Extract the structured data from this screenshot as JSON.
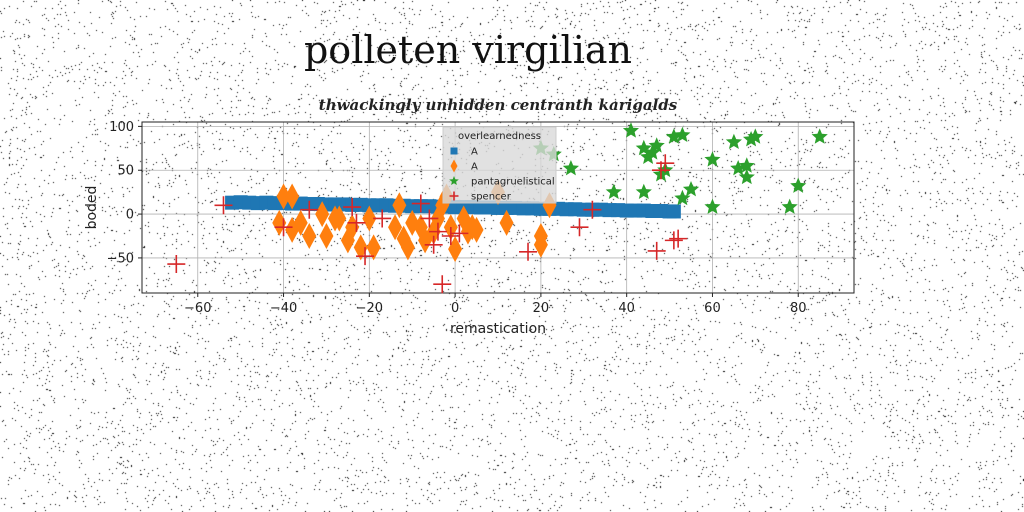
{
  "title": "polleten virgilian",
  "chart_data": {
    "type": "scatter",
    "title": "thwackingly unhidden centranth karigalds",
    "xlabel": "remastication",
    "ylabel": "boded",
    "xlim": [
      -73,
      93
    ],
    "ylim": [
      -90,
      105
    ],
    "xticks": [
      -60,
      -40,
      -20,
      0,
      20,
      40,
      60,
      80
    ],
    "yticks": [
      -50,
      0,
      50,
      100
    ],
    "grid": true,
    "legend": {
      "title": "overlearnedness",
      "position": "top-center"
    },
    "series": [
      {
        "name": "A",
        "marker": "square",
        "color": "#1f77b4",
        "points": [
          [
            -52,
            13
          ],
          [
            -50,
            13.5
          ],
          [
            -48,
            13
          ],
          [
            -46,
            12.5
          ],
          [
            -44,
            13
          ],
          [
            -42,
            12.5
          ],
          [
            -40,
            12.5
          ],
          [
            -38,
            12
          ],
          [
            -36,
            12
          ],
          [
            -34,
            11.5
          ],
          [
            -32,
            11.5
          ],
          [
            -30,
            11
          ],
          [
            -28,
            11
          ],
          [
            -26,
            11
          ],
          [
            -24,
            10.5
          ],
          [
            -22,
            10.5
          ],
          [
            -20,
            10
          ],
          [
            -18,
            10
          ],
          [
            -16,
            10
          ],
          [
            -14,
            9.5
          ],
          [
            -12,
            9.5
          ],
          [
            -10,
            9
          ],
          [
            -8,
            9
          ],
          [
            -6,
            9
          ],
          [
            -4,
            8.5
          ],
          [
            -2,
            8.5
          ],
          [
            0,
            8
          ],
          [
            2,
            8
          ],
          [
            4,
            8
          ],
          [
            6,
            7.5
          ],
          [
            8,
            7.5
          ],
          [
            10,
            7
          ],
          [
            12,
            7
          ],
          [
            14,
            7
          ],
          [
            16,
            6.5
          ],
          [
            18,
            6.5
          ],
          [
            20,
            6
          ],
          [
            22,
            6
          ],
          [
            24,
            6
          ],
          [
            26,
            5.5
          ],
          [
            28,
            5.5
          ],
          [
            30,
            5
          ],
          [
            32,
            5
          ],
          [
            34,
            5
          ],
          [
            36,
            4.5
          ],
          [
            38,
            4.5
          ],
          [
            40,
            4
          ],
          [
            42,
            4
          ],
          [
            44,
            4
          ],
          [
            46,
            3.5
          ],
          [
            48,
            3.5
          ],
          [
            50,
            3
          ],
          [
            51,
            3
          ]
        ]
      },
      {
        "name": "A",
        "marker": "diamond",
        "color": "#ff7f0e",
        "points": [
          [
            -40,
            20
          ],
          [
            -38,
            20
          ],
          [
            -41,
            -10
          ],
          [
            -38,
            -18
          ],
          [
            -36,
            -10
          ],
          [
            -34,
            -25
          ],
          [
            -31,
            0
          ],
          [
            -30,
            -25
          ],
          [
            -28,
            -5
          ],
          [
            -27,
            -5
          ],
          [
            -25,
            -30
          ],
          [
            -24,
            -15
          ],
          [
            -22,
            -38
          ],
          [
            -20,
            -5
          ],
          [
            -19,
            -38
          ],
          [
            -14,
            -15
          ],
          [
            -13,
            10
          ],
          [
            -12,
            -28
          ],
          [
            -11,
            -38
          ],
          [
            -10,
            -10
          ],
          [
            -8,
            -15
          ],
          [
            -7,
            -30
          ],
          [
            -5,
            -20
          ],
          [
            -4,
            -5
          ],
          [
            -3,
            10
          ],
          [
            -2,
            20
          ],
          [
            -1,
            -15
          ],
          [
            0,
            -40
          ],
          [
            2,
            -5
          ],
          [
            3,
            -20
          ],
          [
            4,
            -15
          ],
          [
            5,
            -18
          ],
          [
            10,
            25
          ],
          [
            12,
            -10
          ],
          [
            20,
            -35
          ],
          [
            20,
            -25
          ],
          [
            22,
            10
          ]
        ]
      },
      {
        "name": "pantagruelistical",
        "marker": "star",
        "color": "#2ca02c",
        "points": [
          [
            27,
            52
          ],
          [
            37,
            25
          ],
          [
            41,
            95
          ],
          [
            44,
            75
          ],
          [
            44,
            25
          ],
          [
            45,
            65
          ],
          [
            46,
            70
          ],
          [
            47,
            78
          ],
          [
            48,
            45
          ],
          [
            49,
            50
          ],
          [
            51,
            88
          ],
          [
            53,
            90
          ],
          [
            53,
            18
          ],
          [
            55,
            28
          ],
          [
            60,
            8
          ],
          [
            60,
            62
          ],
          [
            65,
            82
          ],
          [
            66,
            52
          ],
          [
            68,
            55
          ],
          [
            68,
            42
          ],
          [
            69,
            85
          ],
          [
            70,
            88
          ],
          [
            78,
            8
          ],
          [
            80,
            32
          ],
          [
            85,
            88
          ],
          [
            20,
            75
          ],
          [
            23,
            68
          ]
        ]
      },
      {
        "name": "spencer",
        "marker": "plus",
        "color": "#d62728",
        "points": [
          [
            -65,
            -57
          ],
          [
            -54,
            10
          ],
          [
            -40,
            -15
          ],
          [
            -34,
            5
          ],
          [
            -24,
            8
          ],
          [
            -23,
            -10
          ],
          [
            -21,
            -48
          ],
          [
            -17,
            -5
          ],
          [
            -8,
            12
          ],
          [
            -6,
            -5
          ],
          [
            -5,
            -35
          ],
          [
            -4,
            -20
          ],
          [
            -3,
            -80
          ],
          [
            -1,
            -25
          ],
          [
            1,
            -22
          ],
          [
            17,
            -43
          ],
          [
            29,
            -15
          ],
          [
            32,
            5
          ],
          [
            47,
            -42
          ],
          [
            48,
            50
          ],
          [
            49,
            58
          ],
          [
            51,
            -30
          ],
          [
            52,
            -28
          ]
        ]
      }
    ]
  }
}
